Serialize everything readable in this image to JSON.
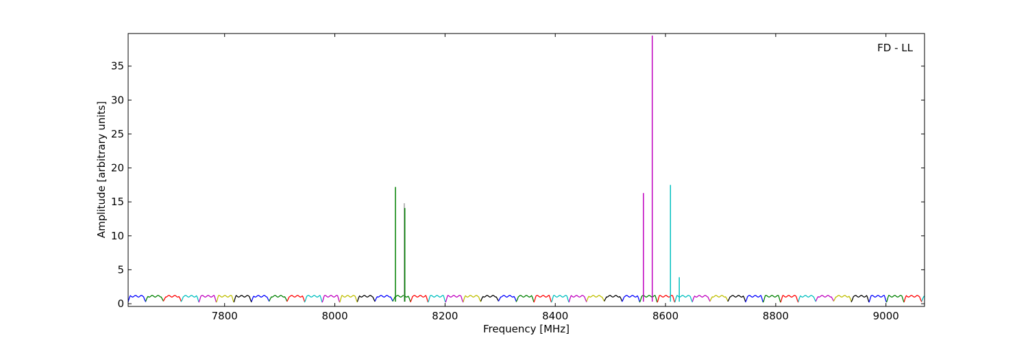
{
  "chart_data": {
    "type": "line",
    "title": "",
    "annotation": "FD - LL",
    "xlabel": "Frequency [MHz]",
    "ylabel": "Amplitude [arbitrary units]",
    "xlim": [
      7625,
      9070
    ],
    "ylim": [
      -0.4,
      39.8
    ],
    "xticks": [
      7800,
      8000,
      8200,
      8400,
      8600,
      8800,
      9000
    ],
    "yticks": [
      0,
      5,
      10,
      15,
      20,
      25,
      30,
      35
    ],
    "grid": false,
    "legend": "none",
    "baseline": {
      "x_start": 7625,
      "x_end": 9070,
      "subband_width_mhz": 32,
      "typical_max": 1.3,
      "typical_min": 0.2,
      "color_cycle": [
        "#0000ff",
        "#008000",
        "#ff0000",
        "#00bfbf",
        "#bf00bf",
        "#bfbf00",
        "#000000"
      ]
    },
    "spikes": [
      {
        "x": 8110,
        "value": 17.2,
        "color": "#008000"
      },
      {
        "x": 8126,
        "value": 14.8,
        "color": "#a0a0a0"
      },
      {
        "x": 8127,
        "value": 14.1,
        "color": "#008000"
      },
      {
        "x": 8560,
        "value": 16.3,
        "color": "#bf00bf"
      },
      {
        "x": 8576,
        "value": 39.5,
        "color": "#bf00bf"
      },
      {
        "x": 8609,
        "value": 17.5,
        "color": "#00bfbf"
      },
      {
        "x": 8625,
        "value": 3.9,
        "color": "#00bfbf"
      }
    ]
  }
}
